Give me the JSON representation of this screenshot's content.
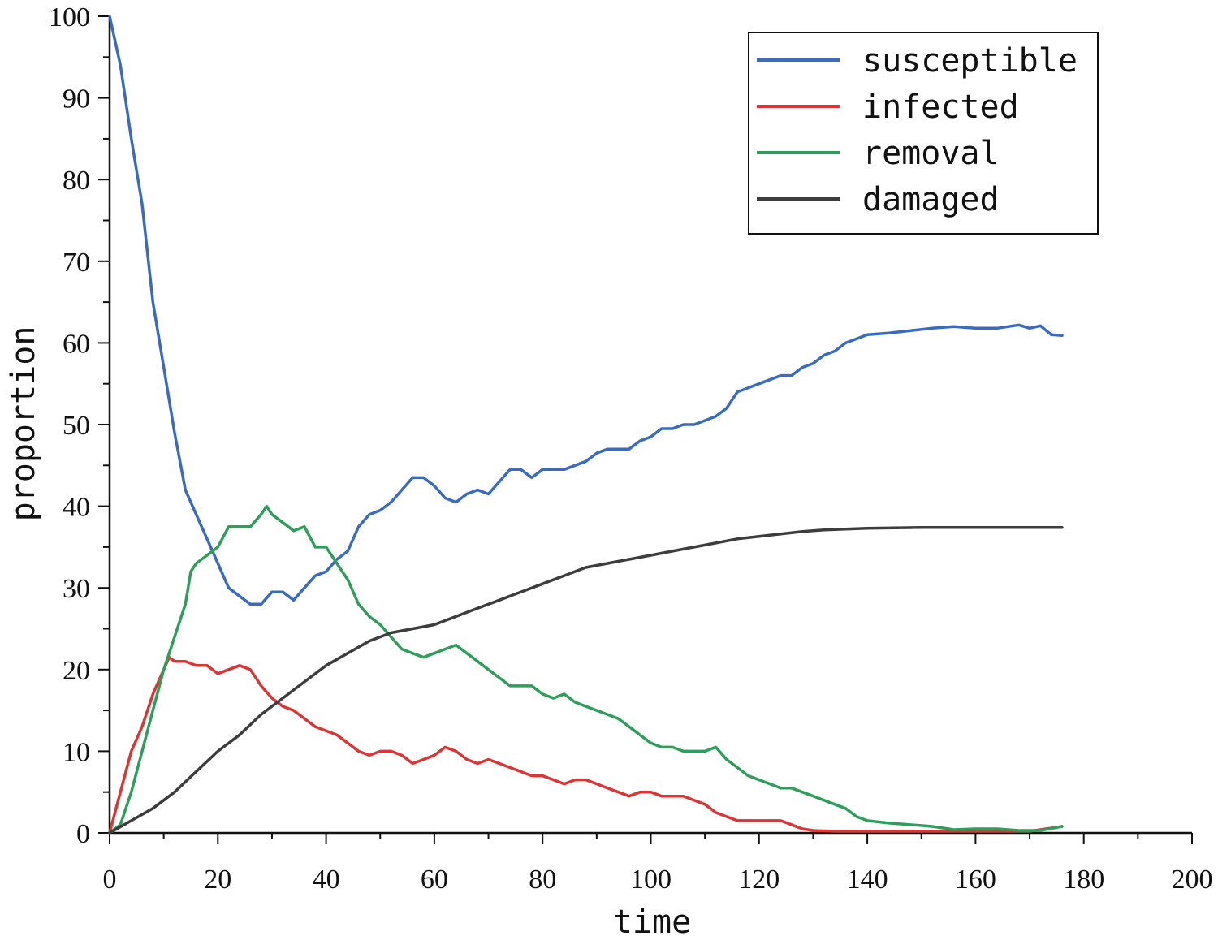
{
  "chart_data": {
    "type": "line",
    "title": "",
    "xlabel": "time",
    "ylabel": "proportion",
    "xlim": [
      0,
      200
    ],
    "ylim": [
      0,
      100
    ],
    "x_ticks": [
      "0",
      "20",
      "40",
      "60",
      "80",
      "100",
      "120",
      "140",
      "160",
      "180",
      "200"
    ],
    "y_ticks": [
      "0",
      "10",
      "20",
      "30",
      "40",
      "50",
      "60",
      "70",
      "80",
      "90",
      "100"
    ],
    "grid": false,
    "legend_position": "top-right",
    "series": [
      {
        "name": "susceptible",
        "color": "#3a6bbf",
        "points": [
          [
            0,
            100
          ],
          [
            2,
            94
          ],
          [
            4,
            85
          ],
          [
            6,
            77
          ],
          [
            8,
            65
          ],
          [
            10,
            57
          ],
          [
            12,
            49
          ],
          [
            14,
            42
          ],
          [
            16,
            39
          ],
          [
            18,
            36
          ],
          [
            20,
            33
          ],
          [
            22,
            30
          ],
          [
            24,
            29
          ],
          [
            26,
            28
          ],
          [
            28,
            28
          ],
          [
            30,
            29.5
          ],
          [
            32,
            29.5
          ],
          [
            34,
            28.5
          ],
          [
            36,
            30
          ],
          [
            38,
            31.5
          ],
          [
            40,
            32
          ],
          [
            42,
            33.5
          ],
          [
            44,
            34.5
          ],
          [
            46,
            37.5
          ],
          [
            48,
            39
          ],
          [
            50,
            39.5
          ],
          [
            52,
            40.5
          ],
          [
            54,
            42
          ],
          [
            56,
            43.5
          ],
          [
            58,
            43.5
          ],
          [
            60,
            42.5
          ],
          [
            62,
            41
          ],
          [
            64,
            40.5
          ],
          [
            66,
            41.5
          ],
          [
            68,
            42
          ],
          [
            70,
            41.5
          ],
          [
            72,
            43
          ],
          [
            74,
            44.5
          ],
          [
            76,
            44.5
          ],
          [
            78,
            43.5
          ],
          [
            80,
            44.5
          ],
          [
            82,
            44.5
          ],
          [
            84,
            44.5
          ],
          [
            86,
            45
          ],
          [
            88,
            45.5
          ],
          [
            90,
            46.5
          ],
          [
            92,
            47
          ],
          [
            94,
            47
          ],
          [
            96,
            47
          ],
          [
            98,
            48
          ],
          [
            100,
            48.5
          ],
          [
            102,
            49.5
          ],
          [
            104,
            49.5
          ],
          [
            106,
            50
          ],
          [
            108,
            50
          ],
          [
            110,
            50.5
          ],
          [
            112,
            51
          ],
          [
            114,
            52
          ],
          [
            116,
            54
          ],
          [
            118,
            54.5
          ],
          [
            120,
            55
          ],
          [
            122,
            55.5
          ],
          [
            124,
            56
          ],
          [
            126,
            56
          ],
          [
            128,
            57
          ],
          [
            130,
            57.5
          ],
          [
            132,
            58.5
          ],
          [
            134,
            59
          ],
          [
            136,
            60
          ],
          [
            138,
            60.5
          ],
          [
            140,
            61
          ],
          [
            144,
            61.2
          ],
          [
            148,
            61.5
          ],
          [
            152,
            61.8
          ],
          [
            156,
            62
          ],
          [
            160,
            61.8
          ],
          [
            164,
            61.8
          ],
          [
            168,
            62.2
          ],
          [
            170,
            61.8
          ],
          [
            172,
            62.1
          ],
          [
            174,
            61
          ],
          [
            176,
            60.9
          ]
        ]
      },
      {
        "name": "infected",
        "color": "#d93636",
        "points": [
          [
            0,
            0
          ],
          [
            2,
            5
          ],
          [
            4,
            10
          ],
          [
            6,
            13
          ],
          [
            8,
            17
          ],
          [
            10,
            20
          ],
          [
            11,
            21.5
          ],
          [
            12,
            21
          ],
          [
            14,
            21
          ],
          [
            16,
            20.5
          ],
          [
            18,
            20.5
          ],
          [
            20,
            19.5
          ],
          [
            22,
            20
          ],
          [
            24,
            20.5
          ],
          [
            26,
            20
          ],
          [
            28,
            18
          ],
          [
            30,
            16.5
          ],
          [
            32,
            15.5
          ],
          [
            34,
            15
          ],
          [
            36,
            14
          ],
          [
            38,
            13
          ],
          [
            40,
            12.5
          ],
          [
            42,
            12
          ],
          [
            44,
            11
          ],
          [
            46,
            10
          ],
          [
            48,
            9.5
          ],
          [
            50,
            10
          ],
          [
            52,
            10
          ],
          [
            54,
            9.5
          ],
          [
            56,
            8.5
          ],
          [
            58,
            9
          ],
          [
            60,
            9.5
          ],
          [
            62,
            10.5
          ],
          [
            64,
            10
          ],
          [
            66,
            9
          ],
          [
            68,
            8.5
          ],
          [
            70,
            9
          ],
          [
            72,
            8.5
          ],
          [
            74,
            8
          ],
          [
            76,
            7.5
          ],
          [
            78,
            7
          ],
          [
            80,
            7
          ],
          [
            82,
            6.5
          ],
          [
            84,
            6
          ],
          [
            86,
            6.5
          ],
          [
            88,
            6.5
          ],
          [
            90,
            6
          ],
          [
            92,
            5.5
          ],
          [
            94,
            5
          ],
          [
            96,
            4.5
          ],
          [
            98,
            5
          ],
          [
            100,
            5
          ],
          [
            102,
            4.5
          ],
          [
            104,
            4.5
          ],
          [
            106,
            4.5
          ],
          [
            108,
            4
          ],
          [
            110,
            3.5
          ],
          [
            112,
            2.5
          ],
          [
            114,
            2
          ],
          [
            116,
            1.5
          ],
          [
            118,
            1.5
          ],
          [
            120,
            1.5
          ],
          [
            122,
            1.5
          ],
          [
            124,
            1.5
          ],
          [
            126,
            1
          ],
          [
            128,
            0.5
          ],
          [
            130,
            0.3
          ],
          [
            134,
            0.2
          ],
          [
            140,
            0.2
          ],
          [
            150,
            0.2
          ],
          [
            160,
            0.2
          ],
          [
            170,
            0.2
          ],
          [
            176,
            0.8
          ]
        ]
      },
      {
        "name": "removal",
        "color": "#2e9e5a",
        "points": [
          [
            0,
            0
          ],
          [
            2,
            1
          ],
          [
            4,
            5
          ],
          [
            6,
            10
          ],
          [
            8,
            15
          ],
          [
            10,
            20
          ],
          [
            12,
            24
          ],
          [
            14,
            28
          ],
          [
            15,
            32
          ],
          [
            16,
            33
          ],
          [
            18,
            34
          ],
          [
            20,
            35
          ],
          [
            22,
            37.5
          ],
          [
            24,
            37.5
          ],
          [
            26,
            37.5
          ],
          [
            28,
            39
          ],
          [
            29,
            40
          ],
          [
            30,
            39
          ],
          [
            32,
            38
          ],
          [
            34,
            37
          ],
          [
            36,
            37.5
          ],
          [
            38,
            35
          ],
          [
            40,
            35
          ],
          [
            42,
            33
          ],
          [
            44,
            31
          ],
          [
            46,
            28
          ],
          [
            48,
            26.5
          ],
          [
            50,
            25.5
          ],
          [
            52,
            24
          ],
          [
            54,
            22.5
          ],
          [
            56,
            22
          ],
          [
            58,
            21.5
          ],
          [
            60,
            22
          ],
          [
            62,
            22.5
          ],
          [
            64,
            23
          ],
          [
            66,
            22
          ],
          [
            68,
            21
          ],
          [
            70,
            20
          ],
          [
            72,
            19
          ],
          [
            74,
            18
          ],
          [
            76,
            18
          ],
          [
            78,
            18
          ],
          [
            80,
            17
          ],
          [
            82,
            16.5
          ],
          [
            84,
            17
          ],
          [
            86,
            16
          ],
          [
            88,
            15.5
          ],
          [
            90,
            15
          ],
          [
            92,
            14.5
          ],
          [
            94,
            14
          ],
          [
            96,
            13
          ],
          [
            98,
            12
          ],
          [
            100,
            11
          ],
          [
            102,
            10.5
          ],
          [
            104,
            10.5
          ],
          [
            106,
            10
          ],
          [
            108,
            10
          ],
          [
            110,
            10
          ],
          [
            112,
            10.5
          ],
          [
            114,
            9
          ],
          [
            116,
            8
          ],
          [
            118,
            7
          ],
          [
            120,
            6.5
          ],
          [
            122,
            6
          ],
          [
            124,
            5.5
          ],
          [
            126,
            5.5
          ],
          [
            128,
            5
          ],
          [
            130,
            4.5
          ],
          [
            132,
            4
          ],
          [
            134,
            3.5
          ],
          [
            136,
            3
          ],
          [
            138,
            2
          ],
          [
            140,
            1.5
          ],
          [
            144,
            1.2
          ],
          [
            148,
            1
          ],
          [
            152,
            0.8
          ],
          [
            156,
            0.4
          ],
          [
            160,
            0.5
          ],
          [
            164,
            0.5
          ],
          [
            168,
            0.3
          ],
          [
            172,
            0.3
          ],
          [
            176,
            0.8
          ]
        ]
      },
      {
        "name": "damaged",
        "color": "#3d3d3d",
        "points": [
          [
            0,
            0
          ],
          [
            4,
            1.5
          ],
          [
            8,
            3
          ],
          [
            12,
            5
          ],
          [
            16,
            7.5
          ],
          [
            20,
            10
          ],
          [
            24,
            12
          ],
          [
            28,
            14.5
          ],
          [
            32,
            16.5
          ],
          [
            36,
            18.5
          ],
          [
            40,
            20.5
          ],
          [
            44,
            22
          ],
          [
            48,
            23.5
          ],
          [
            52,
            24.5
          ],
          [
            56,
            25
          ],
          [
            60,
            25.5
          ],
          [
            64,
            26.5
          ],
          [
            68,
            27.5
          ],
          [
            72,
            28.5
          ],
          [
            76,
            29.5
          ],
          [
            80,
            30.5
          ],
          [
            84,
            31.5
          ],
          [
            88,
            32.5
          ],
          [
            92,
            33
          ],
          [
            96,
            33.5
          ],
          [
            100,
            34
          ],
          [
            104,
            34.5
          ],
          [
            108,
            35
          ],
          [
            112,
            35.5
          ],
          [
            116,
            36
          ],
          [
            120,
            36.3
          ],
          [
            124,
            36.6
          ],
          [
            128,
            36.9
          ],
          [
            132,
            37.1
          ],
          [
            136,
            37.2
          ],
          [
            140,
            37.3
          ],
          [
            150,
            37.4
          ],
          [
            160,
            37.4
          ],
          [
            170,
            37.4
          ],
          [
            176,
            37.4
          ]
        ]
      }
    ]
  }
}
